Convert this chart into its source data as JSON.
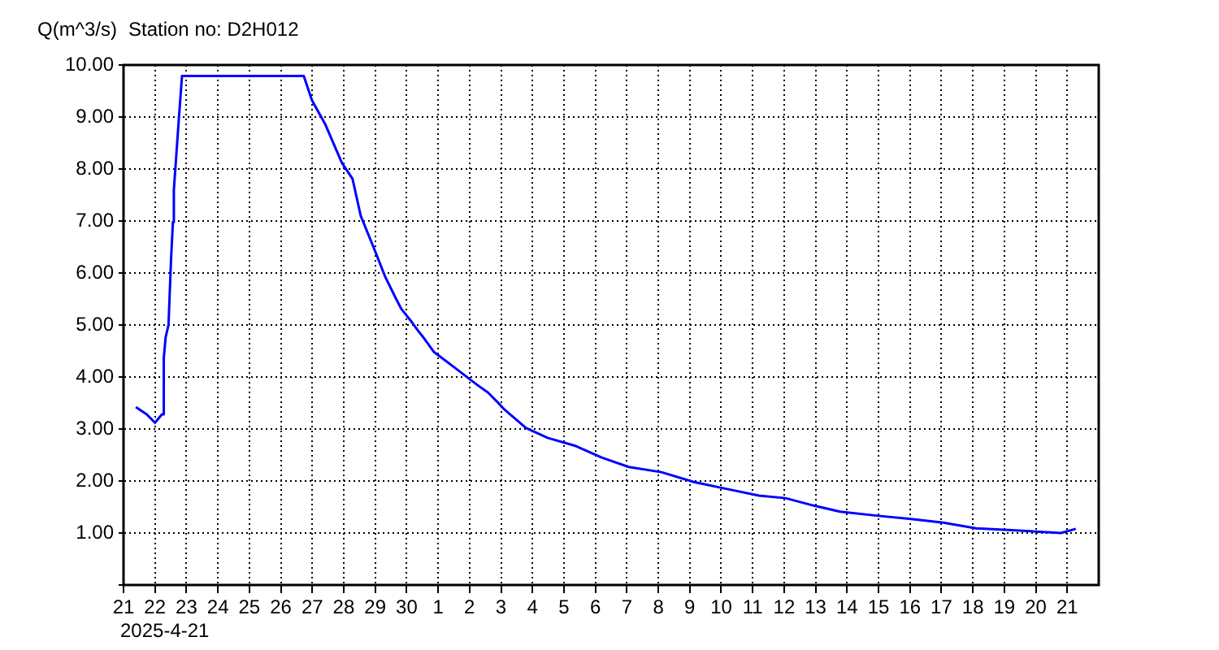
{
  "chart_data": {
    "type": "line",
    "title": "Station no: D2H012",
    "ylabel": "Q(m^3/s)",
    "annotations": [
      "2025-4-21"
    ],
    "x": [
      "2025-04-21T09:22",
      "2025-04-21T17:46",
      "2025-04-22T00:00",
      "2025-04-22T05:17",
      "2025-04-22T06:14",
      "2025-04-22T06:43",
      "2025-04-22T08:10",
      "2025-04-22T10:19",
      "2025-04-22T12:14",
      "2025-04-22T13:41",
      "2025-04-22T14:24",
      "2025-04-22T18:29",
      "2025-04-22T20:38",
      "2025-04-26T17:31",
      "2025-04-26T23:46",
      "2025-04-27T10:05",
      "2025-04-27T22:34",
      "2025-04-28T06:43",
      "2025-04-28T12:58",
      "2025-04-28T23:17",
      "2025-04-29T07:26",
      "2025-04-29T15:36",
      "2025-04-29T19:55",
      "2025-04-30T04:05",
      "2025-04-30T08:24",
      "2025-04-30T12:29",
      "2025-04-30T20:53",
      "2025-05-01T13:12",
      "2025-05-02T05:46",
      "2025-05-02T14:10",
      "2025-05-02T22:19",
      "2025-05-03T02:24",
      "2025-05-03T18:58",
      "2025-05-04T11:31",
      "2025-05-05T08:10",
      "2025-05-06T04:48",
      "2025-05-07T01:26",
      "2025-05-08T02:24",
      "2025-05-09T03:07",
      "2025-05-10T03:50",
      "2025-05-11T04:48",
      "2025-05-12T01:12",
      "2025-05-12T22:05",
      "2025-05-13T18:43",
      "2025-05-15T00:00",
      "2025-05-16T00:43",
      "2025-05-17T01:26",
      "2025-05-18T02:24",
      "2025-05-19T02:53",
      "2025-05-20T19:12",
      "2025-05-21T06:29"
    ],
    "series": [
      {
        "color": "#0000ff",
        "values": [
          3.42,
          3.28,
          3.12,
          3.28,
          3.28,
          4.37,
          4.77,
          5.0,
          6.25,
          6.98,
          7.6,
          9.06,
          9.79,
          9.79,
          9.32,
          8.85,
          8.12,
          7.81,
          7.1,
          6.46,
          5.94,
          5.52,
          5.31,
          5.05,
          4.9,
          4.77,
          4.48,
          4.17,
          3.85,
          3.7,
          3.49,
          3.38,
          3.02,
          2.83,
          2.68,
          2.45,
          2.27,
          2.17,
          1.98,
          1.85,
          1.72,
          1.67,
          1.53,
          1.41,
          1.33,
          1.27,
          1.2,
          1.09,
          1.06,
          1.0,
          1.08
        ]
      }
    ],
    "xlim": [
      "2025-04-21",
      "2025-05-22"
    ],
    "xticks": [
      {
        "value": "2025-04-21",
        "label": "21"
      },
      {
        "value": "2025-04-22",
        "label": "22"
      },
      {
        "value": "2025-04-23",
        "label": "23"
      },
      {
        "value": "2025-04-24",
        "label": "24"
      },
      {
        "value": "2025-04-25",
        "label": "25"
      },
      {
        "value": "2025-04-26",
        "label": "26"
      },
      {
        "value": "2025-04-27",
        "label": "27"
      },
      {
        "value": "2025-04-28",
        "label": "28"
      },
      {
        "value": "2025-04-29",
        "label": "29"
      },
      {
        "value": "2025-04-30",
        "label": "30"
      },
      {
        "value": "2025-05-01",
        "label": "1"
      },
      {
        "value": "2025-05-02",
        "label": "2"
      },
      {
        "value": "2025-05-03",
        "label": "3"
      },
      {
        "value": "2025-05-04",
        "label": "4"
      },
      {
        "value": "2025-05-05",
        "label": "5"
      },
      {
        "value": "2025-05-06",
        "label": "6"
      },
      {
        "value": "2025-05-07",
        "label": "7"
      },
      {
        "value": "2025-05-08",
        "label": "8"
      },
      {
        "value": "2025-05-09",
        "label": "9"
      },
      {
        "value": "2025-05-10",
        "label": "10"
      },
      {
        "value": "2025-05-11",
        "label": "11"
      },
      {
        "value": "2025-05-12",
        "label": "12"
      },
      {
        "value": "2025-05-13",
        "label": "13"
      },
      {
        "value": "2025-05-14",
        "label": "14"
      },
      {
        "value": "2025-05-15",
        "label": "15"
      },
      {
        "value": "2025-05-16",
        "label": "16"
      },
      {
        "value": "2025-05-17",
        "label": "17"
      },
      {
        "value": "2025-05-18",
        "label": "18"
      },
      {
        "value": "2025-05-19",
        "label": "19"
      },
      {
        "value": "2025-05-20",
        "label": "20"
      },
      {
        "value": "2025-05-21",
        "label": "21"
      }
    ],
    "ylim": [
      0,
      10
    ],
    "yticks": [
      {
        "value": 0,
        "label": null
      },
      {
        "value": 1,
        "label": "1.00"
      },
      {
        "value": 2,
        "label": "2.00"
      },
      {
        "value": 3,
        "label": "3.00"
      },
      {
        "value": 4,
        "label": "4.00"
      },
      {
        "value": 5,
        "label": "5.00"
      },
      {
        "value": 6,
        "label": "6.00"
      },
      {
        "value": 7,
        "label": "7.00"
      },
      {
        "value": 8,
        "label": "8.00"
      },
      {
        "value": 9,
        "label": "9.00"
      },
      {
        "value": 10,
        "label": "10.00"
      }
    ],
    "grid": true,
    "legend": false,
    "marker": "none",
    "line_style": "solid"
  }
}
